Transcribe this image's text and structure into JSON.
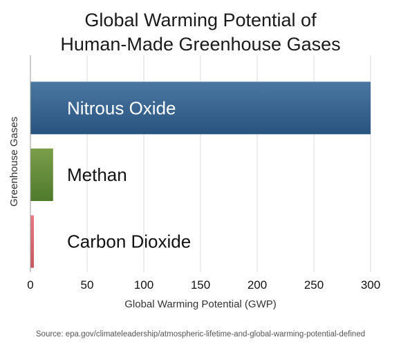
{
  "chart_data": {
    "type": "bar",
    "orientation": "horizontal",
    "title_lines": [
      "Global Warming Potential of",
      "Human-Made Greenhouse Gases"
    ],
    "categories": [
      "Nitrous Oxide",
      "Methan",
      "Carbon Dioxide"
    ],
    "values": [
      300,
      20,
      1
    ],
    "colors": [
      {
        "top": "#4a76a2",
        "bottom": "#2a5480"
      },
      {
        "top": "#7a9e4a",
        "bottom": "#4f7a2c"
      },
      {
        "top": "#e87a85",
        "bottom": "#c9555f"
      }
    ],
    "label_colors": [
      "#ffffff",
      "#111111",
      "#111111"
    ],
    "xlabel": "Global Warming Potential (GWP)",
    "ylabel": "Greenhouse Gases",
    "xlim": [
      0,
      300
    ],
    "xticks": [
      0,
      50,
      100,
      150,
      200,
      250,
      300
    ],
    "grid": true,
    "source": "Source: epa.gov/climateleadership/atmospheric-lifetime-and-global-warming-potential-defined"
  }
}
